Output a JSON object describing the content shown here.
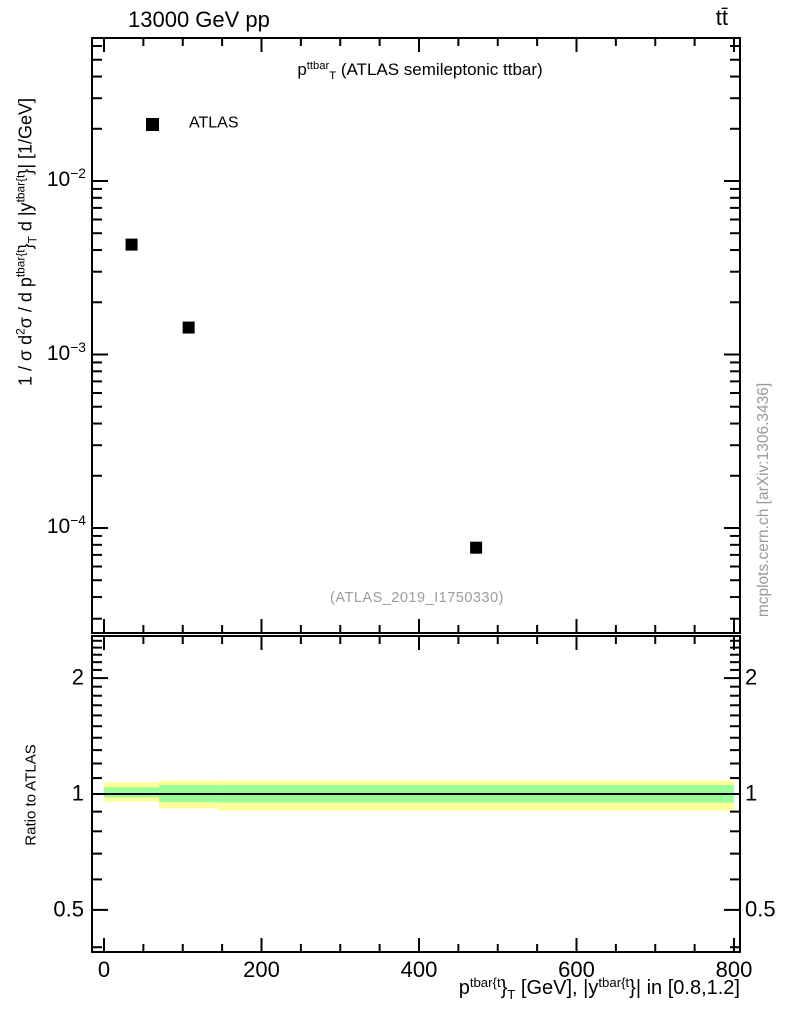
{
  "header": {
    "left": "13000 GeV pp",
    "right": "tt̄"
  },
  "colors": {
    "band_yellow": "#ffff99",
    "band_green": "#99ff99",
    "marker": "#000000",
    "frame": "#000000",
    "watermark_gray": "#9c9c9c",
    "caption_gray": "#999999"
  },
  "main_panel": {
    "title_segments": [
      {
        "t": "p"
      },
      {
        "t": "ttbar",
        "style": "sup"
      },
      {
        "t": "T",
        "style": "sub"
      },
      {
        "t": " (ATLAS semileptonic ttbar)"
      }
    ],
    "legend": {
      "label": "ATLAS"
    },
    "watermark": "(ATLAS_2019_I1750330)",
    "ylabel_segments": [
      {
        "t": "1 / σ d"
      },
      {
        "t": "2",
        "style": "sup"
      },
      {
        "t": "σ / d p"
      },
      {
        "t": "tbar{t",
        "style": "sup"
      },
      {
        "t": "}"
      },
      {
        "t": "T",
        "style": "sub"
      },
      {
        "t": " d |y"
      },
      {
        "t": "tbar{t",
        "style": "sup"
      },
      {
        "t": "}| [1/GeV]"
      }
    ]
  },
  "ratio_panel": {
    "ylabel": "Ratio to ATLAS",
    "tick_labels": [
      "2",
      "1",
      "0.5"
    ]
  },
  "xaxis": {
    "title_segments": [
      {
        "t": "p"
      },
      {
        "t": "tbar{t",
        "style": "sup"
      },
      {
        "t": "}"
      },
      {
        "t": "T",
        "style": "sub"
      },
      {
        "t": " [GeV], |y"
      },
      {
        "t": "tbar{t",
        "style": "sup"
      },
      {
        "t": "}| in [0.8,1.2]"
      }
    ],
    "tick_labels": [
      "0",
      "200",
      "400",
      "600",
      "800"
    ]
  },
  "side_caption": "mcplots.cern.ch [arXiv:1306.3436]",
  "chart_data": [
    {
      "type": "scatter",
      "panel": "main",
      "title": "p_T^ttbar (ATLAS semileptonic ttbar)",
      "xlabel": "p_T^tbar{t} [GeV], |y^tbar{t}| in [0.8,1.2]",
      "ylabel": "1/σ d²σ / dp_T^tbar{t} d|y^tbar{t}| [1/GeV]",
      "xscale": "linear",
      "yscale": "log",
      "xlim": [
        0,
        800
      ],
      "ylim": [
        2.5e-05,
        0.067
      ],
      "grid": false,
      "legend_position": "top-left",
      "series": [
        {
          "name": "ATLAS",
          "marker": "filled-square",
          "color": "#000000",
          "points": [
            {
              "x": 35,
              "y": 0.0043
            },
            {
              "x": 107.5,
              "y": 0.00143
            },
            {
              "x": 472.5,
              "y": 7.7e-05
            }
          ]
        }
      ],
      "xticks_major": [
        0,
        200,
        400,
        600,
        800
      ],
      "xtick_minor_step": 50,
      "ytick_decades_labeled": [
        -2,
        -3,
        -4
      ]
    },
    {
      "type": "band-line",
      "panel": "ratio",
      "ylabel": "Ratio to ATLAS",
      "xscale": "linear",
      "yscale": "log",
      "xlim": [
        0,
        800
      ],
      "ylim": [
        0.39,
        2.57
      ],
      "yticks_labeled": [
        2,
        1,
        0.5
      ],
      "line": {
        "y": 1.0,
        "color": "#000000"
      },
      "bands": [
        {
          "x0": 0,
          "x1": 70,
          "yellow": [
            0.955,
            1.072
          ],
          "green": [
            0.98,
            1.041
          ]
        },
        {
          "x0": 70,
          "x1": 145,
          "yellow": [
            0.918,
            1.083
          ],
          "green": [
            0.952,
            1.055
          ]
        },
        {
          "x0": 145,
          "x1": 800,
          "yellow": [
            0.905,
            1.083
          ],
          "green": [
            0.95,
            1.055
          ]
        }
      ]
    }
  ]
}
